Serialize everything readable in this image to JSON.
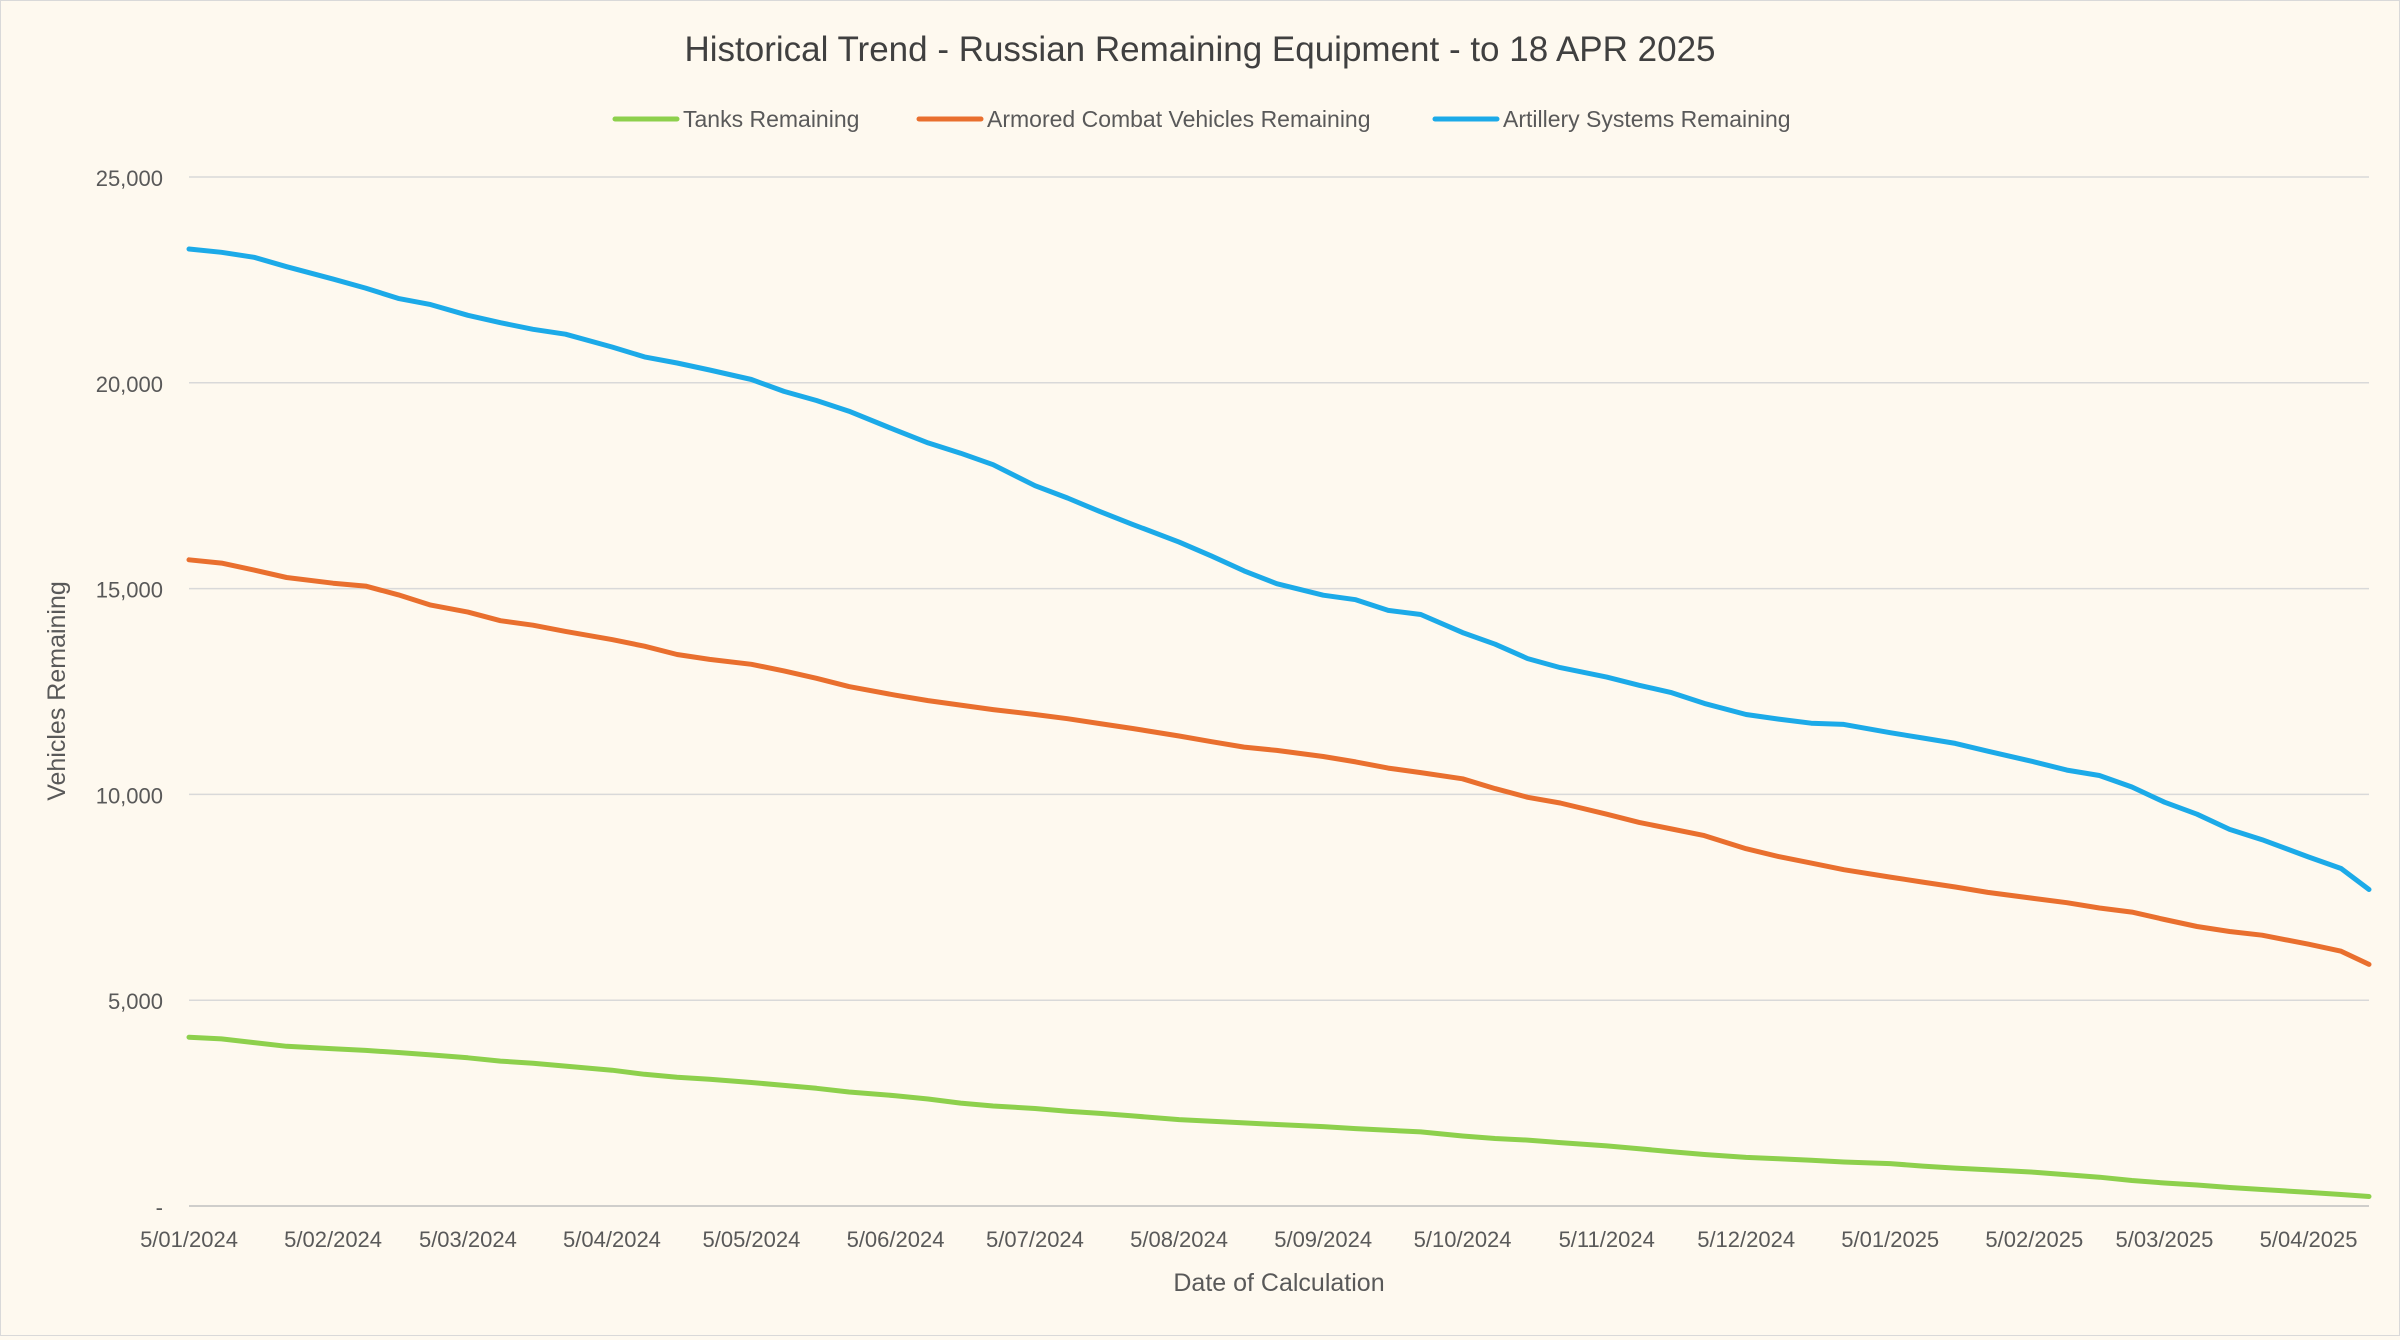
{
  "chart_data": {
    "type": "line",
    "title": "Historical Trend - Russian Remaining Equipment - to 18 APR 2025",
    "xlabel": "Date of Calculation",
    "ylabel": "Vehicles Remaining",
    "ylim": [
      0,
      25000
    ],
    "yticks": [
      {
        "value": 0,
        "label": "-"
      },
      {
        "value": 5000,
        "label": "5,000"
      },
      {
        "value": 10000,
        "label": "10,000"
      },
      {
        "value": 15000,
        "label": "15,000"
      },
      {
        "value": 20000,
        "label": "20,000"
      },
      {
        "value": 25000,
        "label": "25,000"
      }
    ],
    "xticks": [
      {
        "date": "2024-01-05",
        "label": "5/01/2024"
      },
      {
        "date": "2024-02-05",
        "label": "5/02/2024"
      },
      {
        "date": "2024-03-05",
        "label": "5/03/2024"
      },
      {
        "date": "2024-04-05",
        "label": "5/04/2024"
      },
      {
        "date": "2024-05-05",
        "label": "5/05/2024"
      },
      {
        "date": "2024-06-05",
        "label": "5/06/2024"
      },
      {
        "date": "2024-07-05",
        "label": "5/07/2024"
      },
      {
        "date": "2024-08-05",
        "label": "5/08/2024"
      },
      {
        "date": "2024-09-05",
        "label": "5/09/2024"
      },
      {
        "date": "2024-10-05",
        "label": "5/10/2024"
      },
      {
        "date": "2024-11-05",
        "label": "5/11/2024"
      },
      {
        "date": "2024-12-05",
        "label": "5/12/2024"
      },
      {
        "date": "2025-01-05",
        "label": "5/01/2025"
      },
      {
        "date": "2025-02-05",
        "label": "5/02/2025"
      },
      {
        "date": "2025-03-05",
        "label": "5/03/2025"
      },
      {
        "date": "2025-04-05",
        "label": "5/04/2025"
      }
    ],
    "x_end": "2025-04-18",
    "grid": "horizontal",
    "legend_position": "top",
    "series": [
      {
        "name": "Tanks Remaining",
        "color": "#8DD04C",
        "points": [
          [
            "2024-01-05",
            4100
          ],
          [
            "2024-01-12",
            4060
          ],
          [
            "2024-01-19",
            3970
          ],
          [
            "2024-01-26",
            3880
          ],
          [
            "2024-02-05",
            3820
          ],
          [
            "2024-02-12",
            3780
          ],
          [
            "2024-02-19",
            3730
          ],
          [
            "2024-02-26",
            3670
          ],
          [
            "2024-03-05",
            3600
          ],
          [
            "2024-03-12",
            3520
          ],
          [
            "2024-03-19",
            3470
          ],
          [
            "2024-03-26",
            3400
          ],
          [
            "2024-04-05",
            3300
          ],
          [
            "2024-04-12",
            3200
          ],
          [
            "2024-04-19",
            3130
          ],
          [
            "2024-04-26",
            3080
          ],
          [
            "2024-05-05",
            3000
          ],
          [
            "2024-05-12",
            2930
          ],
          [
            "2024-05-19",
            2860
          ],
          [
            "2024-05-26",
            2770
          ],
          [
            "2024-06-05",
            2680
          ],
          [
            "2024-06-12",
            2600
          ],
          [
            "2024-06-19",
            2500
          ],
          [
            "2024-06-26",
            2430
          ],
          [
            "2024-07-05",
            2370
          ],
          [
            "2024-07-12",
            2300
          ],
          [
            "2024-07-19",
            2250
          ],
          [
            "2024-07-26",
            2190
          ],
          [
            "2024-08-05",
            2100
          ],
          [
            "2024-08-12",
            2060
          ],
          [
            "2024-08-19",
            2020
          ],
          [
            "2024-08-26",
            1980
          ],
          [
            "2024-09-05",
            1930
          ],
          [
            "2024-09-12",
            1880
          ],
          [
            "2024-09-19",
            1840
          ],
          [
            "2024-09-26",
            1800
          ],
          [
            "2024-10-05",
            1700
          ],
          [
            "2024-10-12",
            1640
          ],
          [
            "2024-10-19",
            1600
          ],
          [
            "2024-10-26",
            1540
          ],
          [
            "2024-11-05",
            1460
          ],
          [
            "2024-11-12",
            1390
          ],
          [
            "2024-11-19",
            1320
          ],
          [
            "2024-11-26",
            1250
          ],
          [
            "2024-12-05",
            1180
          ],
          [
            "2024-12-12",
            1150
          ],
          [
            "2024-12-19",
            1110
          ],
          [
            "2024-12-26",
            1070
          ],
          [
            "2025-01-05",
            1030
          ],
          [
            "2025-01-12",
            970
          ],
          [
            "2025-01-19",
            920
          ],
          [
            "2025-01-26",
            880
          ],
          [
            "2025-02-05",
            820
          ],
          [
            "2025-02-12",
            760
          ],
          [
            "2025-02-19",
            700
          ],
          [
            "2025-02-26",
            620
          ],
          [
            "2025-03-05",
            560
          ],
          [
            "2025-03-12",
            510
          ],
          [
            "2025-03-19",
            450
          ],
          [
            "2025-03-26",
            400
          ],
          [
            "2025-04-05",
            330
          ],
          [
            "2025-04-12",
            280
          ],
          [
            "2025-04-18",
            230
          ]
        ]
      },
      {
        "name": "Armored Combat Vehicles Remaining",
        "color": "#E96F2E",
        "points": [
          [
            "2024-01-05",
            15700
          ],
          [
            "2024-01-12",
            15620
          ],
          [
            "2024-01-19",
            15450
          ],
          [
            "2024-01-26",
            15270
          ],
          [
            "2024-02-05",
            15130
          ],
          [
            "2024-02-12",
            15060
          ],
          [
            "2024-02-19",
            14850
          ],
          [
            "2024-02-26",
            14600
          ],
          [
            "2024-03-05",
            14430
          ],
          [
            "2024-03-12",
            14220
          ],
          [
            "2024-03-19",
            14110
          ],
          [
            "2024-03-26",
            13960
          ],
          [
            "2024-04-05",
            13760
          ],
          [
            "2024-04-12",
            13600
          ],
          [
            "2024-04-19",
            13400
          ],
          [
            "2024-04-26",
            13280
          ],
          [
            "2024-05-05",
            13160
          ],
          [
            "2024-05-12",
            13000
          ],
          [
            "2024-05-19",
            12820
          ],
          [
            "2024-05-26",
            12620
          ],
          [
            "2024-06-05",
            12410
          ],
          [
            "2024-06-12",
            12280
          ],
          [
            "2024-06-19",
            12170
          ],
          [
            "2024-06-26",
            12060
          ],
          [
            "2024-07-05",
            11940
          ],
          [
            "2024-07-12",
            11840
          ],
          [
            "2024-07-19",
            11720
          ],
          [
            "2024-07-26",
            11600
          ],
          [
            "2024-08-05",
            11420
          ],
          [
            "2024-08-12",
            11280
          ],
          [
            "2024-08-19",
            11150
          ],
          [
            "2024-08-26",
            11070
          ],
          [
            "2024-09-05",
            10920
          ],
          [
            "2024-09-12",
            10790
          ],
          [
            "2024-09-19",
            10640
          ],
          [
            "2024-09-26",
            10530
          ],
          [
            "2024-10-05",
            10380
          ],
          [
            "2024-10-12",
            10140
          ],
          [
            "2024-10-19",
            9930
          ],
          [
            "2024-10-26",
            9790
          ],
          [
            "2024-11-05",
            9520
          ],
          [
            "2024-11-12",
            9320
          ],
          [
            "2024-11-19",
            9160
          ],
          [
            "2024-11-26",
            9000
          ],
          [
            "2024-12-05",
            8680
          ],
          [
            "2024-12-12",
            8490
          ],
          [
            "2024-12-19",
            8330
          ],
          [
            "2024-12-26",
            8170
          ],
          [
            "2025-01-05",
            7990
          ],
          [
            "2025-01-12",
            7870
          ],
          [
            "2025-01-19",
            7750
          ],
          [
            "2025-01-26",
            7620
          ],
          [
            "2025-02-05",
            7470
          ],
          [
            "2025-02-12",
            7370
          ],
          [
            "2025-02-19",
            7240
          ],
          [
            "2025-02-26",
            7140
          ],
          [
            "2025-03-05",
            6960
          ],
          [
            "2025-03-12",
            6790
          ],
          [
            "2025-03-19",
            6670
          ],
          [
            "2025-03-26",
            6580
          ],
          [
            "2025-04-05",
            6360
          ],
          [
            "2025-04-12",
            6190
          ],
          [
            "2025-04-18",
            5870
          ]
        ]
      },
      {
        "name": "Artillery Systems Remaining",
        "color": "#1CAAE8",
        "points": [
          [
            "2024-01-05",
            23250
          ],
          [
            "2024-01-12",
            23170
          ],
          [
            "2024-01-19",
            23050
          ],
          [
            "2024-01-26",
            22820
          ],
          [
            "2024-02-05",
            22520
          ],
          [
            "2024-02-12",
            22300
          ],
          [
            "2024-02-19",
            22050
          ],
          [
            "2024-02-26",
            21900
          ],
          [
            "2024-03-05",
            21640
          ],
          [
            "2024-03-12",
            21460
          ],
          [
            "2024-03-19",
            21300
          ],
          [
            "2024-03-26",
            21180
          ],
          [
            "2024-04-05",
            20870
          ],
          [
            "2024-04-12",
            20630
          ],
          [
            "2024-04-19",
            20480
          ],
          [
            "2024-04-26",
            20310
          ],
          [
            "2024-05-05",
            20080
          ],
          [
            "2024-05-12",
            19790
          ],
          [
            "2024-05-19",
            19570
          ],
          [
            "2024-05-26",
            19310
          ],
          [
            "2024-06-05",
            18850
          ],
          [
            "2024-06-12",
            18540
          ],
          [
            "2024-06-19",
            18290
          ],
          [
            "2024-06-26",
            18010
          ],
          [
            "2024-07-05",
            17500
          ],
          [
            "2024-07-12",
            17200
          ],
          [
            "2024-07-19",
            16870
          ],
          [
            "2024-07-26",
            16560
          ],
          [
            "2024-08-05",
            16130
          ],
          [
            "2024-08-12",
            15790
          ],
          [
            "2024-08-19",
            15430
          ],
          [
            "2024-08-26",
            15120
          ],
          [
            "2024-09-05",
            14840
          ],
          [
            "2024-09-12",
            14730
          ],
          [
            "2024-09-19",
            14470
          ],
          [
            "2024-09-26",
            14370
          ],
          [
            "2024-10-05",
            13930
          ],
          [
            "2024-10-12",
            13650
          ],
          [
            "2024-10-19",
            13300
          ],
          [
            "2024-10-26",
            13080
          ],
          [
            "2024-11-05",
            12850
          ],
          [
            "2024-11-12",
            12650
          ],
          [
            "2024-11-19",
            12470
          ],
          [
            "2024-11-26",
            12210
          ],
          [
            "2024-12-05",
            11940
          ],
          [
            "2024-12-12",
            11830
          ],
          [
            "2024-12-19",
            11730
          ],
          [
            "2024-12-26",
            11700
          ],
          [
            "2025-01-05",
            11500
          ],
          [
            "2025-01-12",
            11370
          ],
          [
            "2025-01-19",
            11240
          ],
          [
            "2025-01-26",
            11050
          ],
          [
            "2025-02-05",
            10790
          ],
          [
            "2025-02-12",
            10590
          ],
          [
            "2025-02-19",
            10460
          ],
          [
            "2025-02-26",
            10180
          ],
          [
            "2025-03-05",
            9810
          ],
          [
            "2025-03-12",
            9520
          ],
          [
            "2025-03-19",
            9150
          ],
          [
            "2025-03-26",
            8900
          ],
          [
            "2025-04-05",
            8480
          ],
          [
            "2025-04-12",
            8200
          ],
          [
            "2025-04-18",
            7690
          ]
        ]
      }
    ]
  },
  "colors": {
    "background": "#FEF9EF",
    "grid": "#D9D9D9",
    "axis": "#BFBFBF",
    "text": "#595959",
    "title": "#404040"
  }
}
